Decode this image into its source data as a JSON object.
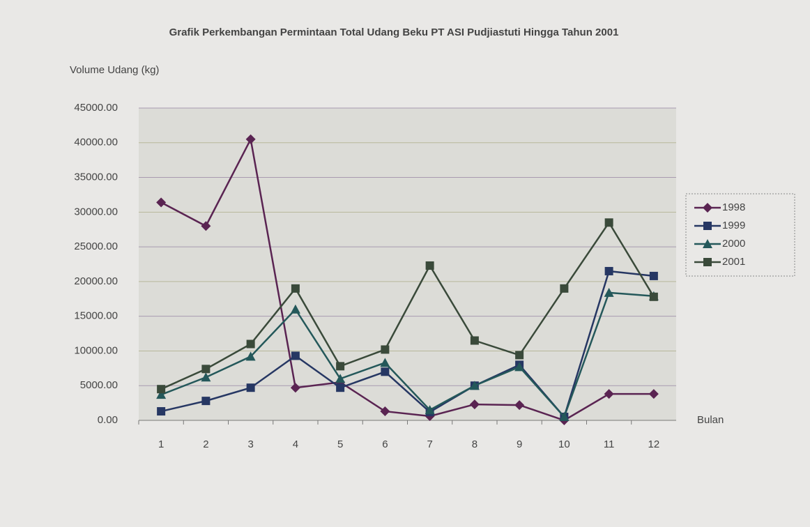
{
  "chart_data": {
    "type": "line",
    "title": "Grafik Perkembangan Permintaan Total Udang Beku PT ASI Pudjiastuti Hingga Tahun 2001",
    "y_label": "Volume Udang (kg)",
    "x_label": "Bulan",
    "categories": [
      "1",
      "2",
      "3",
      "4",
      "5",
      "6",
      "7",
      "8",
      "9",
      "10",
      "11",
      "12"
    ],
    "series": [
      {
        "name": "1998",
        "color": "#5a2452",
        "marker": "diamond",
        "values": [
          31400,
          28000,
          40500,
          4700,
          5500,
          1300,
          600,
          2300,
          2200,
          0,
          3800,
          3800
        ]
      },
      {
        "name": "1999",
        "color": "#263763",
        "marker": "square",
        "values": [
          1300,
          2800,
          4700,
          9300,
          4700,
          7000,
          1200,
          5000,
          8000,
          500,
          21500,
          20800
        ]
      },
      {
        "name": "2000",
        "color": "#24585a",
        "marker": "triangle",
        "values": [
          3700,
          6200,
          9200,
          16000,
          6000,
          8300,
          1500,
          5000,
          7700,
          500,
          18400,
          17900
        ]
      },
      {
        "name": "2001",
        "color": "#3a4a3a",
        "marker": "square",
        "values": [
          4500,
          7400,
          11000,
          19000,
          7800,
          10200,
          22300,
          11500,
          9400,
          19000,
          28500,
          17800
        ]
      }
    ],
    "ylim": [
      0,
      45000
    ],
    "yticks": [
      {
        "value": 0,
        "label": "0.00"
      },
      {
        "value": 5000,
        "label": "5000.00"
      },
      {
        "value": 10000,
        "label": "10000.00"
      },
      {
        "value": 15000,
        "label": "15000.00"
      },
      {
        "value": 20000,
        "label": "20000.00"
      },
      {
        "value": 25000,
        "label": "25000.00"
      },
      {
        "value": 30000,
        "label": "30000.00"
      },
      {
        "value": 35000,
        "label": "35000.00"
      },
      {
        "value": 40000,
        "label": "40000.00"
      },
      {
        "value": 45000,
        "label": "45000.00"
      }
    ],
    "grid": true,
    "legend": "right"
  }
}
